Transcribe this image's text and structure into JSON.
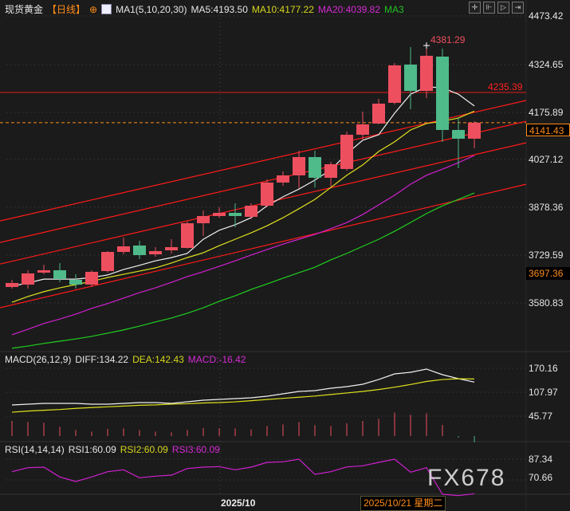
{
  "header": {
    "instrument": "现货黄金",
    "period": "【日线】",
    "ma_label": "MA1(5,10,20,30)",
    "ma5": "MA5:4193.50",
    "ma10": "MA10:4177.22",
    "ma20": "MA20:4039.82",
    "ma30": "MA3",
    "toolbar_icons": [
      "crosshair-icon",
      "zoom-in-icon",
      "play-icon",
      "end-icon"
    ]
  },
  "colors": {
    "up": "#ee4f5f",
    "down": "#4fba8a",
    "ma5": "#f0f0f0",
    "ma10": "#e0e020",
    "ma20": "#d020d0",
    "ma30": "#20d020",
    "channel": "#ff1a1a",
    "accent": "#ff8c1a"
  },
  "price_axis": {
    "labels": [
      "4473.42",
      "4324.65",
      "4175.89",
      "4027.12",
      "3878.36",
      "3729.59",
      "3580.83"
    ],
    "current": "4141.43",
    "marker": "3697.36"
  },
  "annotations": {
    "high": "4381.29",
    "level": "4235.39"
  },
  "macd": {
    "title": "MACD(26,12,9)",
    "diff": "DIFF:134.22",
    "dea": "DEA:142.43",
    "macd": "MACD:-16.42",
    "labels": [
      "170.16",
      "107.97",
      "45.77"
    ]
  },
  "rsi": {
    "title": "RSI(14,14,14)",
    "rsi1": "RSI1:60.09",
    "rsi2": "RSI2:60.09",
    "rsi3": "RSI3:60.09",
    "labels": [
      "87.34",
      "70.66"
    ]
  },
  "xaxis": {
    "month": "2025/10",
    "cursor_date": "2025/10/21 星期二"
  },
  "watermark": "FX678",
  "chart_data": {
    "type": "candlestick",
    "ylim": [
      3432,
      4523
    ],
    "candles": [
      [
        3630.6,
        3652.9,
        3625.6,
        3643.0
      ],
      [
        3638.0,
        3682.6,
        3625.6,
        3672.7
      ],
      [
        3675.2,
        3700.0,
        3670.2,
        3682.6
      ],
      [
        3682.6,
        3704.9,
        3645.5,
        3655.4
      ],
      [
        3652.9,
        3670.2,
        3625.6,
        3638.0
      ],
      [
        3638.0,
        3682.6,
        3630.6,
        3677.7
      ],
      [
        3680.1,
        3742.1,
        3675.2,
        3739.6
      ],
      [
        3739.6,
        3784.3,
        3732.2,
        3757.0
      ],
      [
        3759.5,
        3774.3,
        3717.3,
        3729.7
      ],
      [
        3732.2,
        3754.5,
        3724.8,
        3742.1
      ],
      [
        3744.6,
        3779.3,
        3734.7,
        3754.5
      ],
      [
        3752.0,
        3833.8,
        3749.5,
        3828.8
      ],
      [
        3828.8,
        3868.5,
        3789.2,
        3851.2
      ],
      [
        3851.2,
        3878.5,
        3846.2,
        3861.1
      ],
      [
        3861.1,
        3890.9,
        3816.5,
        3851.2
      ],
      [
        3848.7,
        3890.9,
        3841.3,
        3883.4
      ],
      [
        3883.4,
        3965.2,
        3878.5,
        3955.3
      ],
      [
        3955.3,
        3990.0,
        3945.4,
        3977.6
      ],
      [
        3977.6,
        4054.5,
        3937.9,
        4034.6
      ],
      [
        4034.6,
        4054.5,
        3940.4,
        3970.2
      ],
      [
        3970.2,
        4019.8,
        3942.9,
        4012.3
      ],
      [
        3997.5,
        4114.0,
        3992.5,
        4104.0
      ],
      [
        4104.0,
        4175.9,
        4086.7,
        4136.3
      ],
      [
        4138.8,
        4215.6,
        4136.3,
        4200.7
      ],
      [
        4203.2,
        4327.0,
        4198.0,
        4319.7
      ],
      [
        4322.2,
        4376.7,
        4183.4,
        4240.4
      ],
      [
        4240.4,
        4381.29,
        4218.1,
        4349.5
      ],
      [
        4347.0,
        4371.8,
        4081.7,
        4118.9
      ],
      [
        4118.9,
        4158.6,
        3999.9,
        4091.7
      ],
      [
        4091.7,
        4146.2,
        4061.9,
        4141.43
      ]
    ],
    "ma5": [
      3633,
      3643,
      3655,
      3655,
      3655,
      3660,
      3668,
      3685,
      3698,
      3712,
      3722,
      3735,
      3779,
      3807,
      3824,
      3846,
      3883,
      3911,
      3935,
      3963,
      3995,
      4045,
      4087,
      4104,
      4171,
      4230,
      4253,
      4250,
      4230,
      4193.5
    ],
    "ma10": [
      3583,
      3601,
      3616,
      3628,
      3638,
      3648,
      3660,
      3670,
      3680,
      3690,
      3705,
      3722,
      3737,
      3759,
      3779,
      3799,
      3821,
      3846,
      3874,
      3903,
      3940,
      3978,
      4010,
      4052,
      4082,
      4119,
      4139,
      4146,
      4156,
      4177.22
    ],
    "ma20": [
      3482,
      3499,
      3517,
      3531,
      3546,
      3564,
      3579,
      3596,
      3613,
      3628,
      3645,
      3663,
      3678,
      3695,
      3712,
      3730,
      3747,
      3764,
      3779,
      3794,
      3812,
      3831,
      3856,
      3886,
      3916,
      3950,
      3978,
      3997,
      4017,
      4039.82
    ],
    "ma30": [
      3440,
      3447,
      3455,
      3462,
      3469,
      3477,
      3487,
      3497,
      3509,
      3522,
      3534,
      3549,
      3566,
      3586,
      3603,
      3623,
      3640,
      3658,
      3675,
      3692,
      3715,
      3735,
      3757,
      3779,
      3804,
      3831,
      3859,
      3883,
      3903,
      3923
    ],
    "channel_lines": [
      {
        "from": {
          "i": -0.75,
          "price": 3836
        },
        "to": {
          "i": 32.25,
          "price": 4210.6
        }
      },
      {
        "from": {
          "i": -0.75,
          "price": 3769
        },
        "to": {
          "i": 32.25,
          "price": 4146
        }
      },
      {
        "from": {
          "i": -0.75,
          "price": 3702
        },
        "to": {
          "i": 32.25,
          "price": 4079
        }
      },
      {
        "from": {
          "i": -0.75,
          "price": 3566
        },
        "to": {
          "i": 32.25,
          "price": 3950
        }
      }
    ],
    "horizontal_level": 4235.39,
    "current_price": 4141.43,
    "macd_diff": [
      74.8,
      76.9,
      79.0,
      79.0,
      79.0,
      76.9,
      76.9,
      79.0,
      81.0,
      81.0,
      79.0,
      83.1,
      87.2,
      89.3,
      91.4,
      93.5,
      97.6,
      103.8,
      110.0,
      112.1,
      118.3,
      122.5,
      128.7,
      141.1,
      155.6,
      159.8,
      168.1,
      153.6,
      143.2,
      134.22
    ],
    "macd_dea": [
      56,
      59,
      61,
      63,
      66,
      68,
      70,
      72,
      74,
      75,
      77,
      78,
      80,
      81,
      83,
      86,
      89,
      92,
      95,
      98,
      102,
      106,
      110,
      115,
      121,
      128,
      136,
      141,
      143,
      142.43
    ],
    "macd_hist": [
      39.4,
      36.6,
      34.6,
      24.2,
      15.9,
      11.7,
      18.7,
      20.0,
      15.9,
      11.7,
      9.7,
      15.9,
      20.7,
      20.0,
      20.0,
      17.3,
      26.3,
      30.4,
      36.6,
      28.3,
      26.3,
      33.2,
      39.4,
      44.9,
      60.8,
      55.3,
      59.4,
      29.0,
      -3.5,
      -16.42
    ],
    "rsi": [
      77.46,
      80.61,
      81.05,
      73.31,
      69.73,
      73.31,
      77.46,
      78.97,
      72.68,
      73.94,
      74.76,
      79.98,
      81.05,
      81.49,
      78.97,
      81.05,
      84.82,
      85.26,
      87.34,
      75.39,
      77.46,
      81.24,
      82.12,
      84.82,
      87.34,
      77.09,
      80.61,
      59.66,
      58.59,
      60.09
    ]
  }
}
